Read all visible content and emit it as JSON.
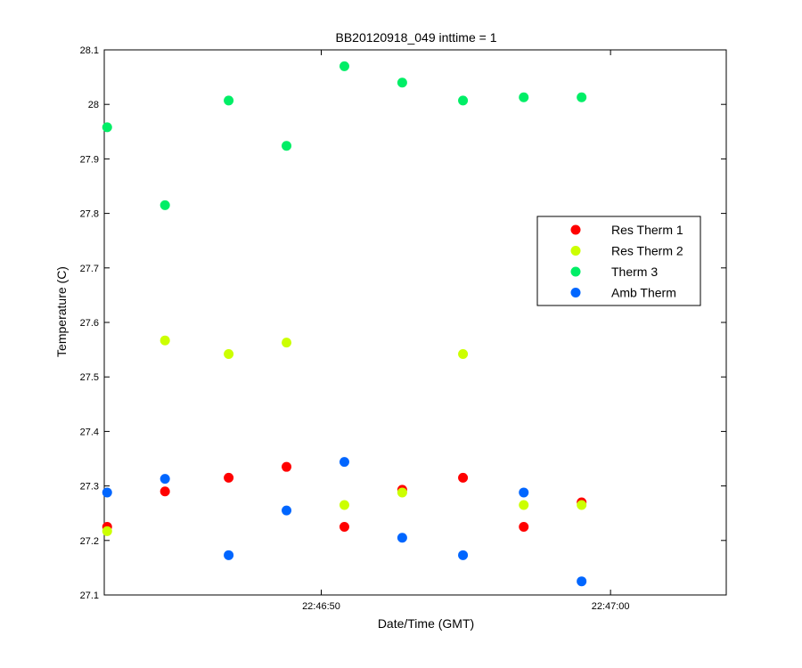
{
  "chart_data": {
    "type": "scatter",
    "title": "BB20120918_049 inttime = 1",
    "xlabel": "Date/Time (GMT)",
    "ylabel": "Temperature (C)",
    "x_unit": "time of day (GMT)",
    "xlim": [
      "22:46:42.5",
      "22:47:04"
    ],
    "ylim": [
      27.1,
      28.1
    ],
    "xticks": [
      {
        "value": "22:46:50",
        "label": "22:46:50"
      },
      {
        "value": "22:47:00",
        "label": "22:47:00"
      }
    ],
    "yticks": [
      {
        "value": 27.1,
        "label": "27.1"
      },
      {
        "value": 27.2,
        "label": "27.2"
      },
      {
        "value": 27.3,
        "label": "27.3"
      },
      {
        "value": 27.4,
        "label": "27.4"
      },
      {
        "value": 27.5,
        "label": "27.5"
      },
      {
        "value": 27.6,
        "label": "27.6"
      },
      {
        "value": 27.7,
        "label": "27.7"
      },
      {
        "value": 27.8,
        "label": "27.8"
      },
      {
        "value": 27.9,
        "label": "27.9"
      },
      {
        "value": 28.0,
        "label": "28"
      },
      {
        "value": 28.1,
        "label": "28.1"
      }
    ],
    "grid": false,
    "legend_position": "right",
    "series": [
      {
        "name": "Res Therm 1",
        "color": "#ff0000",
        "points": [
          {
            "x": "22:46:42.6",
            "y": 27.225
          },
          {
            "x": "22:46:44.6",
            "y": 27.29
          },
          {
            "x": "22:46:46.8",
            "y": 27.315
          },
          {
            "x": "22:46:48.8",
            "y": 27.335
          },
          {
            "x": "22:46:50.8",
            "y": 27.225
          },
          {
            "x": "22:46:52.8",
            "y": 27.293
          },
          {
            "x": "22:46:54.9",
            "y": 27.315
          },
          {
            "x": "22:46:57.0",
            "y": 27.225
          },
          {
            "x": "22:46:59.0",
            "y": 27.27
          }
        ]
      },
      {
        "name": "Res Therm 2",
        "color": "#ccff00",
        "points": [
          {
            "x": "22:46:42.6",
            "y": 27.217
          },
          {
            "x": "22:46:44.6",
            "y": 27.567
          },
          {
            "x": "22:46:46.8",
            "y": 27.542
          },
          {
            "x": "22:46:48.8",
            "y": 27.563
          },
          {
            "x": "22:46:50.8",
            "y": 27.265
          },
          {
            "x": "22:46:52.8",
            "y": 27.288
          },
          {
            "x": "22:46:54.9",
            "y": 27.542
          },
          {
            "x": "22:46:57.0",
            "y": 27.265
          },
          {
            "x": "22:46:59.0",
            "y": 27.265
          }
        ]
      },
      {
        "name": "Therm 3",
        "color": "#00ee66",
        "points": [
          {
            "x": "22:46:42.6",
            "y": 27.958
          },
          {
            "x": "22:46:44.6",
            "y": 27.815
          },
          {
            "x": "22:46:46.8",
            "y": 28.007
          },
          {
            "x": "22:46:48.8",
            "y": 27.924
          },
          {
            "x": "22:46:50.8",
            "y": 28.07
          },
          {
            "x": "22:46:52.8",
            "y": 28.04
          },
          {
            "x": "22:46:54.9",
            "y": 28.007
          },
          {
            "x": "22:46:57.0",
            "y": 28.013
          },
          {
            "x": "22:46:59.0",
            "y": 28.013
          }
        ]
      },
      {
        "name": "Amb Therm",
        "color": "#0066ff",
        "points": [
          {
            "x": "22:46:42.6",
            "y": 27.288
          },
          {
            "x": "22:46:44.6",
            "y": 27.313
          },
          {
            "x": "22:46:46.8",
            "y": 27.173
          },
          {
            "x": "22:46:48.8",
            "y": 27.255
          },
          {
            "x": "22:46:50.8",
            "y": 27.344
          },
          {
            "x": "22:46:52.8",
            "y": 27.205
          },
          {
            "x": "22:46:54.9",
            "y": 27.173
          },
          {
            "x": "22:46:57.0",
            "y": 27.288
          },
          {
            "x": "22:46:59.0",
            "y": 27.125
          }
        ]
      }
    ]
  }
}
